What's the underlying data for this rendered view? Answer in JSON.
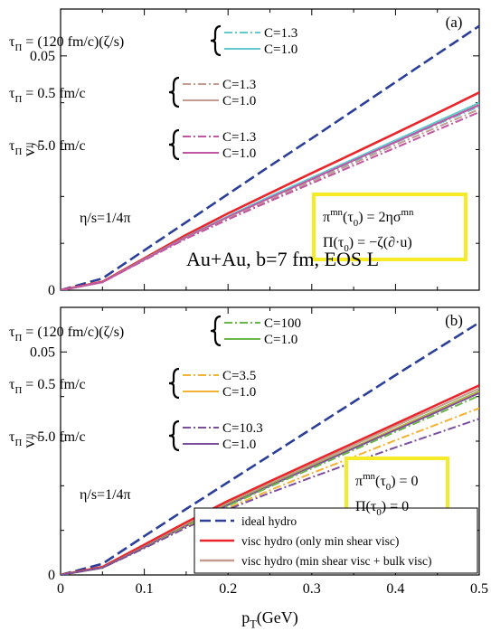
{
  "colors": {
    "ideal": "#2b3f99",
    "red": "#e8262b",
    "brown": "#c49b8e",
    "cyan": "#62c9cf",
    "orchid": "#c055a3",
    "green": "#6ab64a",
    "orange": "#f2b233",
    "purple": "#7b4e9d",
    "highlight": "#f5ec27"
  },
  "chart_data": [
    {
      "type": "line",
      "panel_label": "(a)",
      "xlabel": "p_T(GeV)",
      "ylabel": "v_2",
      "xlim": [
        0,
        0.5
      ],
      "ylim": [
        0,
        0.06
      ],
      "x_ticks": [
        0,
        0.1,
        0.2,
        0.3,
        0.4,
        0.5
      ],
      "x_tick_labels": [
        "0",
        "0.1",
        "0.2",
        "0.3",
        "0.4",
        "0.5"
      ],
      "y_ticks": [
        0,
        0.05
      ],
      "y_tick_labels": [
        "0",
        "0.05"
      ],
      "annotations": {
        "eta_s": "η/s=1/4π",
        "system": "Au+Au, b=7 fm,  EOS L",
        "init_pi": "π^mn(τ_0) = 2ησ^mn",
        "init_bulk": "Π(τ_0) = −ζ(∂·u)"
      },
      "groups": [
        {
          "tau_label": "τ_Π = (120 fm/c)(ζ/s)",
          "entries": [
            "C=1.3",
            "C=1.0"
          ],
          "colors": [
            "cyan",
            "cyan"
          ]
        },
        {
          "tau_label": "τ_Π = 0.5 fm/c",
          "entries": [
            "C=1.3",
            "C=1.0"
          ],
          "colors": [
            "brown",
            "brown"
          ]
        },
        {
          "tau_label": "τ_Π = 5.0 fm/c",
          "entries": [
            "C=1.3",
            "C=1.0"
          ],
          "colors": [
            "orchid",
            "orchid"
          ]
        }
      ],
      "series": [
        {
          "color": "ideal",
          "style": "dashed",
          "x": [
            0,
            0.05,
            0.1,
            0.15,
            0.2,
            0.25,
            0.3,
            0.35,
            0.4,
            0.45,
            0.5
          ],
          "y": [
            0,
            0.0025,
            0.0085,
            0.0145,
            0.0205,
            0.0265,
            0.0324,
            0.0384,
            0.0444,
            0.0504,
            0.0564
          ]
        },
        {
          "color": "red",
          "style": "solid",
          "x": [
            0,
            0.05,
            0.1,
            0.15,
            0.2,
            0.25,
            0.3,
            0.35,
            0.4,
            0.45,
            0.5
          ],
          "y": [
            0,
            0.0018,
            0.0068,
            0.0118,
            0.0164,
            0.0207,
            0.025,
            0.0292,
            0.0335,
            0.0378,
            0.0422
          ]
        },
        {
          "color": "brown",
          "style": "solid",
          "x": [
            0,
            0.05,
            0.1,
            0.15,
            0.2,
            0.25,
            0.3,
            0.35,
            0.4,
            0.45,
            0.5
          ],
          "y": [
            0,
            0.0017,
            0.0065,
            0.0113,
            0.0157,
            0.0198,
            0.0238,
            0.0278,
            0.0318,
            0.0358,
            0.0398
          ]
        },
        {
          "color": "cyan",
          "style": "solid",
          "x": [
            0,
            0.05,
            0.1,
            0.15,
            0.2,
            0.25,
            0.3,
            0.35,
            0.4,
            0.45,
            0.5
          ],
          "y": [
            0,
            0.0017,
            0.0066,
            0.0114,
            0.0158,
            0.02,
            0.024,
            0.028,
            0.032,
            0.036,
            0.04
          ]
        },
        {
          "color": "cyan",
          "style": "dashdot",
          "x": [
            0,
            0.05,
            0.1,
            0.15,
            0.2,
            0.25,
            0.3,
            0.35,
            0.4,
            0.45,
            0.5
          ],
          "y": [
            0,
            0.0017,
            0.0065,
            0.0112,
            0.0155,
            0.0196,
            0.0236,
            0.0275,
            0.0315,
            0.0354,
            0.0392
          ]
        },
        {
          "color": "orchid",
          "style": "solid",
          "x": [
            0,
            0.05,
            0.1,
            0.15,
            0.2,
            0.25,
            0.3,
            0.35,
            0.4,
            0.45,
            0.5
          ],
          "y": [
            0,
            0.0017,
            0.0065,
            0.0113,
            0.0156,
            0.0197,
            0.0237,
            0.0277,
            0.0316,
            0.0356,
            0.0395
          ]
        },
        {
          "color": "brown",
          "style": "dashdot",
          "x": [
            0,
            0.05,
            0.1,
            0.15,
            0.2,
            0.25,
            0.3,
            0.35,
            0.4,
            0.45,
            0.5
          ],
          "y": [
            0,
            0.0017,
            0.0064,
            0.0111,
            0.0153,
            0.0193,
            0.0232,
            0.0271,
            0.031,
            0.0348,
            0.0386
          ]
        },
        {
          "color": "orchid",
          "style": "dashdot",
          "x": [
            0,
            0.05,
            0.1,
            0.15,
            0.2,
            0.25,
            0.3,
            0.35,
            0.4,
            0.45,
            0.5
          ],
          "y": [
            0,
            0.0017,
            0.0064,
            0.011,
            0.0151,
            0.019,
            0.0228,
            0.0266,
            0.0304,
            0.0342,
            0.038
          ]
        }
      ]
    },
    {
      "type": "line",
      "panel_label": "(b)",
      "xlabel": "p_T(GeV)",
      "ylabel": "v_2",
      "xlim": [
        0,
        0.5
      ],
      "ylim": [
        0,
        0.06
      ],
      "x_ticks": [
        0,
        0.1,
        0.2,
        0.3,
        0.4,
        0.5
      ],
      "x_tick_labels": [
        "0",
        "0.1",
        "0.2",
        "0.3",
        "0.4",
        "0.5"
      ],
      "y_ticks": [
        0,
        0.05
      ],
      "y_tick_labels": [
        "0",
        "0.05"
      ],
      "annotations": {
        "eta_s": "η/s=1/4π",
        "init_pi": "π^mn(τ_0) = 0",
        "init_bulk": "Π(τ_0) = 0"
      },
      "groups": [
        {
          "tau_label": "τ_Π = (120 fm/c)(ζ/s)",
          "entries": [
            "C=100",
            "C=1.0"
          ],
          "colors": [
            "green",
            "green"
          ]
        },
        {
          "tau_label": "τ_Π = 0.5 fm/c",
          "entries": [
            "C=3.5",
            "C=1.0"
          ],
          "colors": [
            "orange",
            "orange"
          ]
        },
        {
          "tau_label": "τ_Π = 5.0 fm/c",
          "entries": [
            "C=10.3",
            "C=1.0"
          ],
          "colors": [
            "purple",
            "purple"
          ]
        }
      ],
      "legend": [
        {
          "label": "ideal hydro",
          "color": "ideal",
          "style": "dashed"
        },
        {
          "label": "visc hydro (only min shear visc)",
          "color": "red",
          "style": "solid"
        },
        {
          "label": "visc hydro (min shear visc + bulk visc)",
          "color": "brown",
          "style": "solid"
        }
      ],
      "series": [
        {
          "color": "ideal",
          "style": "dashed",
          "x": [
            0,
            0.05,
            0.1,
            0.15,
            0.2,
            0.25,
            0.3,
            0.35,
            0.4,
            0.45,
            0.5
          ],
          "y": [
            0,
            0.0025,
            0.0087,
            0.0148,
            0.0208,
            0.0268,
            0.0328,
            0.0388,
            0.0448,
            0.0507,
            0.0566
          ]
        },
        {
          "color": "red",
          "style": "solid",
          "x": [
            0,
            0.05,
            0.1,
            0.15,
            0.2,
            0.25,
            0.3,
            0.35,
            0.4,
            0.45,
            0.5
          ],
          "y": [
            0,
            0.0018,
            0.0068,
            0.0118,
            0.0166,
            0.021,
            0.0253,
            0.0296,
            0.0339,
            0.0382,
            0.0425
          ]
        },
        {
          "color": "brown",
          "style": "solid",
          "x": [
            0,
            0.05,
            0.1,
            0.15,
            0.2,
            0.25,
            0.3,
            0.35,
            0.4,
            0.45,
            0.5
          ],
          "y": [
            0,
            0.0016,
            0.0063,
            0.0113,
            0.0161,
            0.0205,
            0.0248,
            0.0291,
            0.0334,
            0.0376,
            0.0418
          ]
        },
        {
          "color": "green",
          "style": "solid",
          "x": [
            0,
            0.05,
            0.1,
            0.15,
            0.2,
            0.25,
            0.3,
            0.35,
            0.4,
            0.45,
            0.5
          ],
          "y": [
            0,
            0.0016,
            0.0062,
            0.0111,
            0.0159,
            0.0202,
            0.0244,
            0.0286,
            0.0328,
            0.037,
            0.0412
          ]
        },
        {
          "color": "orange",
          "style": "solid",
          "x": [
            0,
            0.05,
            0.1,
            0.15,
            0.2,
            0.25,
            0.3,
            0.35,
            0.4,
            0.45,
            0.5
          ],
          "y": [
            0,
            0.0016,
            0.0062,
            0.0111,
            0.0158,
            0.0201,
            0.0243,
            0.0285,
            0.0327,
            0.0368,
            0.041
          ]
        },
        {
          "color": "purple",
          "style": "solid",
          "x": [
            0,
            0.05,
            0.1,
            0.15,
            0.2,
            0.25,
            0.3,
            0.35,
            0.4,
            0.45,
            0.5
          ],
          "y": [
            0,
            0.0016,
            0.0062,
            0.011,
            0.0157,
            0.02,
            0.0242,
            0.0284,
            0.0325,
            0.0366,
            0.0408
          ]
        },
        {
          "color": "green",
          "style": "dashdot",
          "x": [
            0,
            0.05,
            0.1,
            0.15,
            0.2,
            0.25,
            0.3,
            0.35,
            0.4,
            0.45,
            0.5
          ],
          "y": [
            0,
            0.0016,
            0.0061,
            0.0109,
            0.0155,
            0.0198,
            0.0239,
            0.028,
            0.0321,
            0.0361,
            0.0402
          ]
        },
        {
          "color": "orange",
          "style": "dashdot",
          "x": [
            0,
            0.05,
            0.1,
            0.15,
            0.2,
            0.25,
            0.3,
            0.35,
            0.4,
            0.45,
            0.5
          ],
          "y": [
            0,
            0.0016,
            0.006,
            0.0107,
            0.015,
            0.019,
            0.0228,
            0.0265,
            0.0302,
            0.0338,
            0.0374
          ]
        },
        {
          "color": "purple",
          "style": "dashdot",
          "x": [
            0,
            0.05,
            0.1,
            0.15,
            0.2,
            0.25,
            0.3,
            0.35,
            0.4,
            0.45,
            0.5
          ],
          "y": [
            0,
            0.0016,
            0.006,
            0.0106,
            0.0147,
            0.0184,
            0.0219,
            0.0253,
            0.0286,
            0.0318,
            0.035
          ]
        }
      ]
    }
  ]
}
